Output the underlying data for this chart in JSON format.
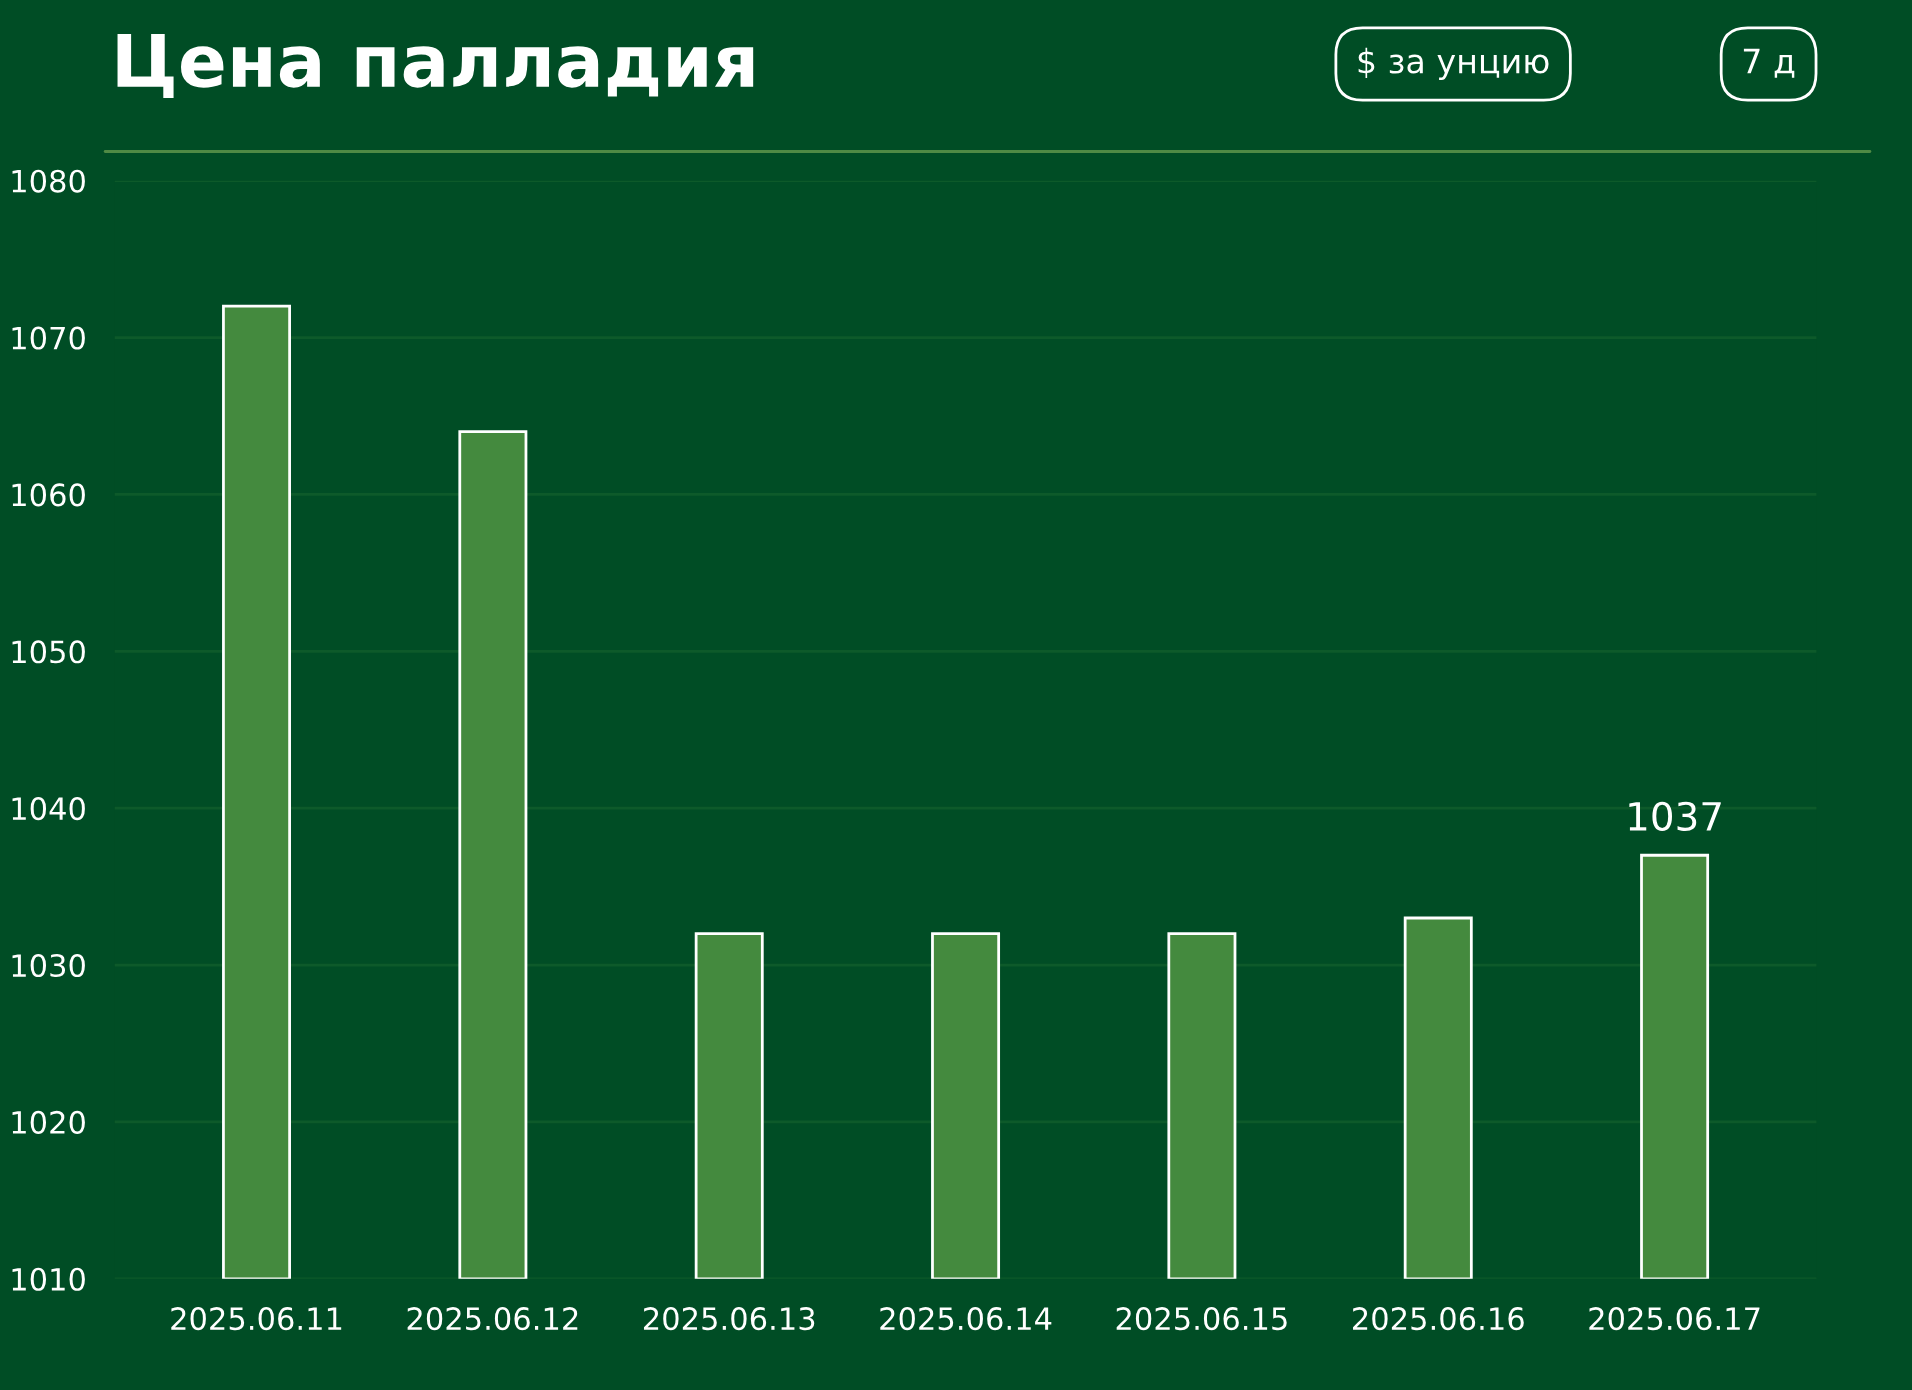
{
  "chart_data": {
    "type": "bar",
    "title": "Цена палладия",
    "annotations": [
      "$ за унцию",
      "7 д"
    ],
    "categories": [
      "2025.06.11",
      "2025.06.12",
      "2025.06.13",
      "2025.06.14",
      "2025.06.15",
      "2025.06.16",
      "2025.06.17"
    ],
    "values": [
      1072,
      1064,
      1032,
      1032,
      1032,
      1033,
      1037
    ],
    "value_labels": [
      null,
      null,
      null,
      null,
      null,
      null,
      "1037"
    ],
    "color": "#448a3e",
    "ylim": [
      1010,
      1080
    ],
    "yticks": [
      1010,
      1020,
      1030,
      1040,
      1050,
      1060,
      1070,
      1080
    ],
    "grid": "y",
    "legend": false
  }
}
